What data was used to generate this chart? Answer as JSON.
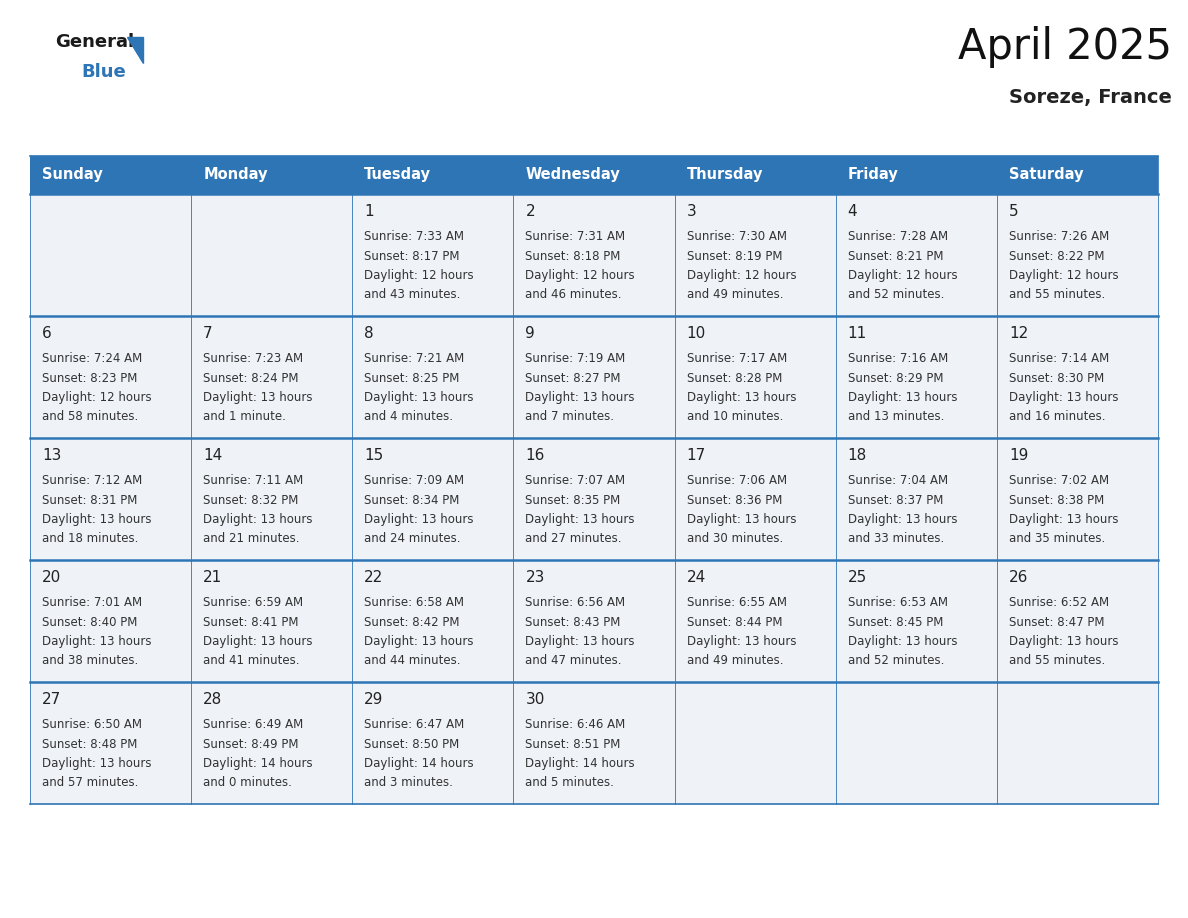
{
  "title": "April 2025",
  "subtitle": "Soreze, France",
  "header_bg_color": "#2e75b6",
  "header_text_color": "#ffffff",
  "days_of_week": [
    "Sunday",
    "Monday",
    "Tuesday",
    "Wednesday",
    "Thursday",
    "Friday",
    "Saturday"
  ],
  "cell_bg_color": "#eff3f8",
  "day_number_color": "#222222",
  "info_text_color": "#333333",
  "grid_line_color": "#2e75b6",
  "weeks": [
    [
      {
        "day": null,
        "sunrise": null,
        "sunset": null,
        "daylight": null
      },
      {
        "day": null,
        "sunrise": null,
        "sunset": null,
        "daylight": null
      },
      {
        "day": 1,
        "sunrise": "7:33 AM",
        "sunset": "8:17 PM",
        "daylight": "12 hours",
        "daylight2": "and 43 minutes."
      },
      {
        "day": 2,
        "sunrise": "7:31 AM",
        "sunset": "8:18 PM",
        "daylight": "12 hours",
        "daylight2": "and 46 minutes."
      },
      {
        "day": 3,
        "sunrise": "7:30 AM",
        "sunset": "8:19 PM",
        "daylight": "12 hours",
        "daylight2": "and 49 minutes."
      },
      {
        "day": 4,
        "sunrise": "7:28 AM",
        "sunset": "8:21 PM",
        "daylight": "12 hours",
        "daylight2": "and 52 minutes."
      },
      {
        "day": 5,
        "sunrise": "7:26 AM",
        "sunset": "8:22 PM",
        "daylight": "12 hours",
        "daylight2": "and 55 minutes."
      }
    ],
    [
      {
        "day": 6,
        "sunrise": "7:24 AM",
        "sunset": "8:23 PM",
        "daylight": "12 hours",
        "daylight2": "and 58 minutes."
      },
      {
        "day": 7,
        "sunrise": "7:23 AM",
        "sunset": "8:24 PM",
        "daylight": "13 hours",
        "daylight2": "and 1 minute."
      },
      {
        "day": 8,
        "sunrise": "7:21 AM",
        "sunset": "8:25 PM",
        "daylight": "13 hours",
        "daylight2": "and 4 minutes."
      },
      {
        "day": 9,
        "sunrise": "7:19 AM",
        "sunset": "8:27 PM",
        "daylight": "13 hours",
        "daylight2": "and 7 minutes."
      },
      {
        "day": 10,
        "sunrise": "7:17 AM",
        "sunset": "8:28 PM",
        "daylight": "13 hours",
        "daylight2": "and 10 minutes."
      },
      {
        "day": 11,
        "sunrise": "7:16 AM",
        "sunset": "8:29 PM",
        "daylight": "13 hours",
        "daylight2": "and 13 minutes."
      },
      {
        "day": 12,
        "sunrise": "7:14 AM",
        "sunset": "8:30 PM",
        "daylight": "13 hours",
        "daylight2": "and 16 minutes."
      }
    ],
    [
      {
        "day": 13,
        "sunrise": "7:12 AM",
        "sunset": "8:31 PM",
        "daylight": "13 hours",
        "daylight2": "and 18 minutes."
      },
      {
        "day": 14,
        "sunrise": "7:11 AM",
        "sunset": "8:32 PM",
        "daylight": "13 hours",
        "daylight2": "and 21 minutes."
      },
      {
        "day": 15,
        "sunrise": "7:09 AM",
        "sunset": "8:34 PM",
        "daylight": "13 hours",
        "daylight2": "and 24 minutes."
      },
      {
        "day": 16,
        "sunrise": "7:07 AM",
        "sunset": "8:35 PM",
        "daylight": "13 hours",
        "daylight2": "and 27 minutes."
      },
      {
        "day": 17,
        "sunrise": "7:06 AM",
        "sunset": "8:36 PM",
        "daylight": "13 hours",
        "daylight2": "and 30 minutes."
      },
      {
        "day": 18,
        "sunrise": "7:04 AM",
        "sunset": "8:37 PM",
        "daylight": "13 hours",
        "daylight2": "and 33 minutes."
      },
      {
        "day": 19,
        "sunrise": "7:02 AM",
        "sunset": "8:38 PM",
        "daylight": "13 hours",
        "daylight2": "and 35 minutes."
      }
    ],
    [
      {
        "day": 20,
        "sunrise": "7:01 AM",
        "sunset": "8:40 PM",
        "daylight": "13 hours",
        "daylight2": "and 38 minutes."
      },
      {
        "day": 21,
        "sunrise": "6:59 AM",
        "sunset": "8:41 PM",
        "daylight": "13 hours",
        "daylight2": "and 41 minutes."
      },
      {
        "day": 22,
        "sunrise": "6:58 AM",
        "sunset": "8:42 PM",
        "daylight": "13 hours",
        "daylight2": "and 44 minutes."
      },
      {
        "day": 23,
        "sunrise": "6:56 AM",
        "sunset": "8:43 PM",
        "daylight": "13 hours",
        "daylight2": "and 47 minutes."
      },
      {
        "day": 24,
        "sunrise": "6:55 AM",
        "sunset": "8:44 PM",
        "daylight": "13 hours",
        "daylight2": "and 49 minutes."
      },
      {
        "day": 25,
        "sunrise": "6:53 AM",
        "sunset": "8:45 PM",
        "daylight": "13 hours",
        "daylight2": "and 52 minutes."
      },
      {
        "day": 26,
        "sunrise": "6:52 AM",
        "sunset": "8:47 PM",
        "daylight": "13 hours",
        "daylight2": "and 55 minutes."
      }
    ],
    [
      {
        "day": 27,
        "sunrise": "6:50 AM",
        "sunset": "8:48 PM",
        "daylight": "13 hours",
        "daylight2": "and 57 minutes."
      },
      {
        "day": 28,
        "sunrise": "6:49 AM",
        "sunset": "8:49 PM",
        "daylight": "14 hours",
        "daylight2": "and 0 minutes."
      },
      {
        "day": 29,
        "sunrise": "6:47 AM",
        "sunset": "8:50 PM",
        "daylight": "14 hours",
        "daylight2": "and 3 minutes."
      },
      {
        "day": 30,
        "sunrise": "6:46 AM",
        "sunset": "8:51 PM",
        "daylight": "14 hours",
        "daylight2": "and 5 minutes."
      },
      {
        "day": null,
        "sunrise": null,
        "sunset": null,
        "daylight": null,
        "daylight2": null
      },
      {
        "day": null,
        "sunrise": null,
        "sunset": null,
        "daylight": null,
        "daylight2": null
      },
      {
        "day": null,
        "sunrise": null,
        "sunset": null,
        "daylight": null,
        "daylight2": null
      }
    ]
  ]
}
